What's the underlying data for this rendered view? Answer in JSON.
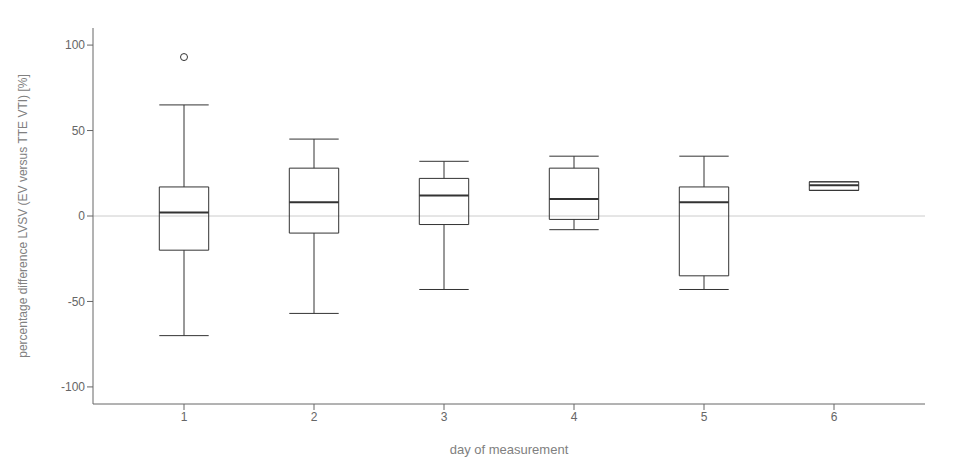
{
  "chart_data": {
    "type": "box",
    "x": [
      1,
      2,
      3,
      4,
      5,
      6
    ],
    "boxes": [
      {
        "median": 2,
        "q1": -20,
        "q3": 17,
        "whislo": -70,
        "whishi": 65,
        "fliers": [
          93
        ]
      },
      {
        "median": 8,
        "q1": -10,
        "q3": 28,
        "whislo": -57,
        "whishi": 45,
        "fliers": []
      },
      {
        "median": 12,
        "q1": -5,
        "q3": 22,
        "whislo": -43,
        "whishi": 32,
        "fliers": []
      },
      {
        "median": 10,
        "q1": -2,
        "q3": 28,
        "whislo": -8,
        "whishi": 35,
        "fliers": []
      },
      {
        "median": 8,
        "q1": -35,
        "q3": 17,
        "whislo": -43,
        "whishi": 35,
        "fliers": []
      },
      {
        "median": 18,
        "q1": 15,
        "q3": 20,
        "whislo": 15,
        "whishi": 20,
        "fliers": []
      }
    ],
    "xlabel": "day of measurement",
    "ylabel": "percentage difference LVSV (EV versus TTE VTI) [%]",
    "xlim": [
      0.3,
      6.7
    ],
    "xticks": [
      1,
      2,
      3,
      4,
      5,
      6
    ],
    "ylim": [
      -110,
      110
    ],
    "yticks": [
      -100,
      -50,
      0,
      50,
      100
    ],
    "reference_line": 0,
    "color": "#333333",
    "grid": false
  }
}
